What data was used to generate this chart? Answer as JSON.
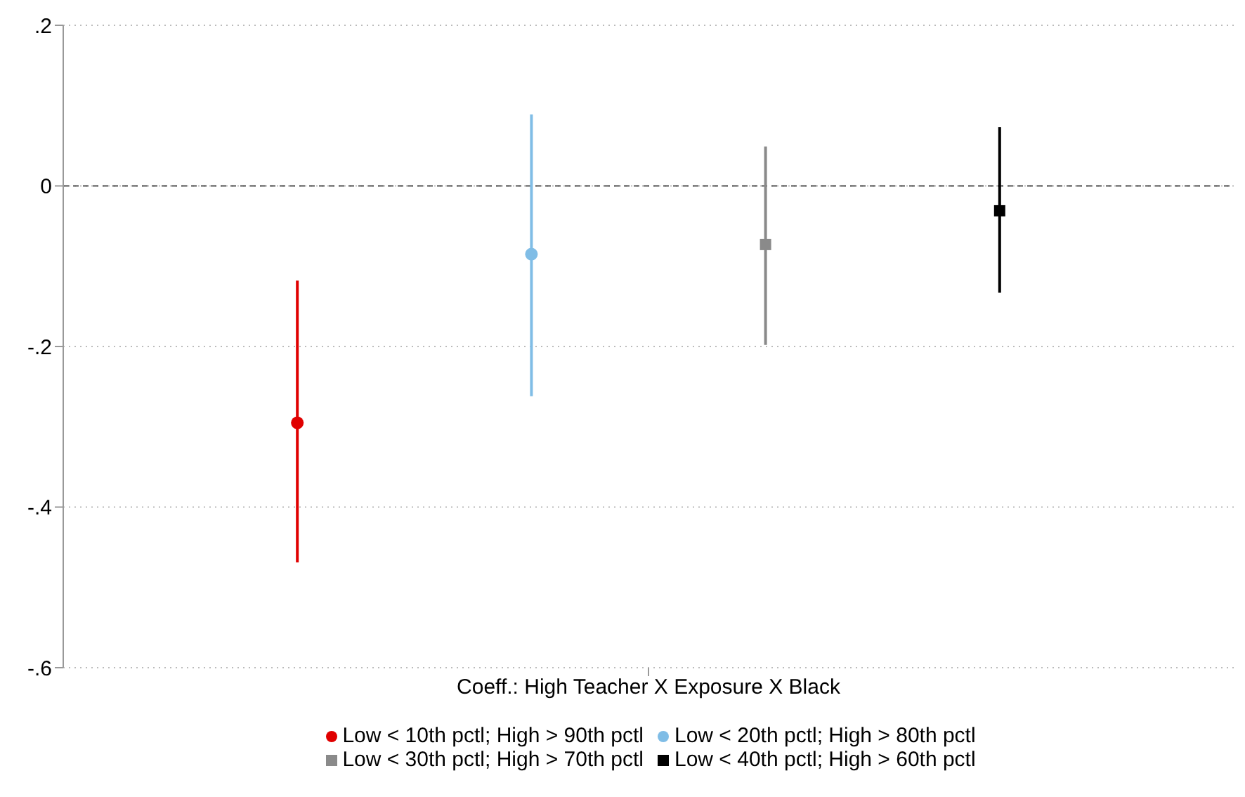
{
  "chart_data": {
    "type": "scatter",
    "categories": [
      "Coeff.: High Teacher X Exposure X Black"
    ],
    "series": [
      {
        "name": "Low < 10th pctl; High > 90th pctl",
        "color": "#e00000",
        "marker": "circle",
        "values": [
          -0.295
        ],
        "errors": [
          [
            -0.469,
            -0.118
          ]
        ]
      },
      {
        "name": "Low < 20th pctl; High > 80th pctl",
        "color": "#80bde6",
        "marker": "circle",
        "values": [
          -0.085
        ],
        "errors": [
          [
            -0.262,
            0.089
          ]
        ]
      },
      {
        "name": "Low < 30th pctl; High > 70th pctl",
        "color": "#8a8a8a",
        "marker": "square",
        "values": [
          -0.073
        ],
        "errors": [
          [
            -0.198,
            0.049
          ]
        ]
      },
      {
        "name": "Low < 40th pctl; High > 60th pctl",
        "color": "#000000",
        "marker": "square",
        "values": [
          -0.031
        ],
        "errors": [
          [
            -0.133,
            0.073
          ]
        ]
      }
    ],
    "ylim": [
      -0.6,
      0.2
    ],
    "yticks": [
      {
        "value": -0.6,
        "label": "-.6"
      },
      {
        "value": -0.4,
        "label": "-.4"
      },
      {
        "value": -0.2,
        "label": "-.2"
      },
      {
        "value": 0,
        "label": "0"
      },
      {
        "value": 0.2,
        "label": ".2"
      }
    ],
    "grid": "y",
    "legend": "bottom",
    "ref_lines": [
      {
        "axis": "y",
        "value": 0,
        "label": null,
        "color": "#555555",
        "line_style": "dashed"
      }
    ]
  }
}
